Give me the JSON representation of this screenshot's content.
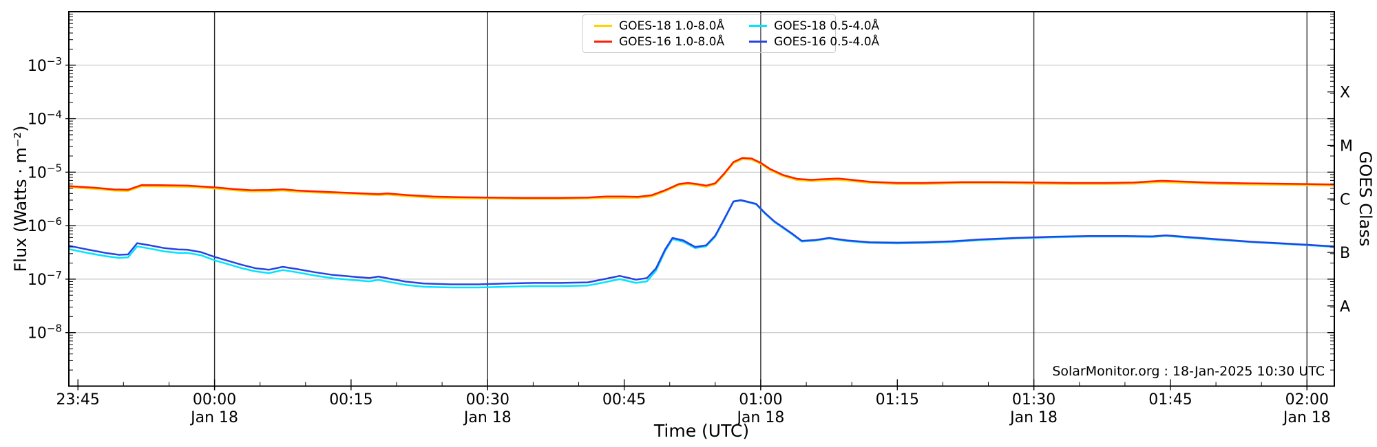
{
  "chart_data": {
    "type": "line",
    "title": "",
    "xlabel": "Time (UTC)",
    "ylabel": "Flux (Watts · m⁻²)",
    "ylabel_right": "GOES Class",
    "annotation": "SolarMonitor.org : 18-Jan-2025 10:30 UTC",
    "x_unit": "minutes relative to 00:00 on Jan 18",
    "x_range": [
      -16,
      123
    ],
    "y_scale": "log",
    "y_log_range": [
      -9,
      -2
    ],
    "grid": {
      "vertical_dark_gridline_times": [
        0,
        30,
        60,
        90,
        120
      ],
      "horizontal_decade_exponents": [
        -8,
        -7,
        -6,
        -5,
        -4,
        -3
      ]
    },
    "x_ticks": [
      {
        "t": -15,
        "label": "23:45"
      },
      {
        "t": 0,
        "label": "00:00",
        "sub": "Jan 18"
      },
      {
        "t": 15,
        "label": "00:15"
      },
      {
        "t": 30,
        "label": "00:30",
        "sub": "Jan 18"
      },
      {
        "t": 45,
        "label": "00:45"
      },
      {
        "t": 60,
        "label": "01:00",
        "sub": "Jan 18"
      },
      {
        "t": 75,
        "label": "01:15"
      },
      {
        "t": 90,
        "label": "01:30",
        "sub": "Jan 18"
      },
      {
        "t": 105,
        "label": "01:45"
      },
      {
        "t": 120,
        "label": "02:00",
        "sub": "Jan 18"
      }
    ],
    "x_minor_step_minutes": 5,
    "y_tick_exponents": [
      -8,
      -7,
      -6,
      -5,
      -4,
      -3
    ],
    "goes_classes": [
      {
        "label": "A",
        "exp": -7.5
      },
      {
        "label": "B",
        "exp": -6.5
      },
      {
        "label": "C",
        "exp": -5.5
      },
      {
        "label": "M",
        "exp": -4.5
      },
      {
        "label": "X",
        "exp": -3.5
      }
    ],
    "legend_position": "top-center",
    "series": [
      {
        "name": "GOES-18 1.0-8.0Å",
        "color": "#ffd300",
        "points": [
          [
            -16,
            5.2e-06
          ],
          [
            -13,
            4.85e-06
          ],
          [
            -11,
            4.5e-06
          ],
          [
            -9.5,
            4.45e-06
          ],
          [
            -8,
            5.45e-06
          ],
          [
            -6,
            5.4e-06
          ],
          [
            -3,
            5.3e-06
          ],
          [
            0,
            4.95e-06
          ],
          [
            2,
            4.6e-06
          ],
          [
            4,
            4.35e-06
          ],
          [
            6,
            4.4e-06
          ],
          [
            7.5,
            4.55e-06
          ],
          [
            9,
            4.3e-06
          ],
          [
            12,
            4.1e-06
          ],
          [
            15,
            3.9e-06
          ],
          [
            18,
            3.7e-06
          ],
          [
            19,
            3.8e-06
          ],
          [
            21,
            3.55e-06
          ],
          [
            24,
            3.3e-06
          ],
          [
            27,
            3.2e-06
          ],
          [
            30,
            3.2e-06
          ],
          [
            34,
            3.15e-06
          ],
          [
            38,
            3.15e-06
          ],
          [
            41,
            3.2e-06
          ],
          [
            43,
            3.3e-06
          ],
          [
            45,
            3.3e-06
          ],
          [
            46.5,
            3.3e-06
          ],
          [
            48,
            3.5e-06
          ],
          [
            49.5,
            4.4e-06
          ],
          [
            51,
            5.7e-06
          ],
          [
            52,
            6e-06
          ],
          [
            53,
            5.7e-06
          ],
          [
            54,
            5.3e-06
          ],
          [
            55,
            5.9e-06
          ],
          [
            56,
            9e-06
          ],
          [
            57,
            1.47e-05
          ],
          [
            58,
            1.76e-05
          ],
          [
            59,
            1.71e-05
          ],
          [
            60,
            1.43e-05
          ],
          [
            61,
            1.09e-05
          ],
          [
            62.5,
            8.4e-06
          ],
          [
            64,
            7.1e-06
          ],
          [
            65.5,
            6.8e-06
          ],
          [
            67,
            7e-06
          ],
          [
            68.5,
            7.2e-06
          ],
          [
            70,
            6.8e-06
          ],
          [
            72,
            6.3e-06
          ],
          [
            75,
            6e-06
          ],
          [
            78,
            6e-06
          ],
          [
            82,
            6.2e-06
          ],
          [
            86,
            6.2e-06
          ],
          [
            90,
            6.1e-06
          ],
          [
            94,
            6e-06
          ],
          [
            98,
            6e-06
          ],
          [
            101,
            6.1e-06
          ],
          [
            104,
            6.55e-06
          ],
          [
            106,
            6.35e-06
          ],
          [
            109,
            6.1e-06
          ],
          [
            113,
            5.9e-06
          ],
          [
            117,
            5.8e-06
          ],
          [
            120,
            5.7e-06
          ],
          [
            123,
            5.6e-06
          ]
        ]
      },
      {
        "name": "GOES-16 1.0-8.0Å",
        "color": "#ff1e00",
        "points": [
          [
            -16,
            5.5e-06
          ],
          [
            -13,
            5.1e-06
          ],
          [
            -11,
            4.75e-06
          ],
          [
            -9.5,
            4.7e-06
          ],
          [
            -8,
            5.75e-06
          ],
          [
            -6,
            5.7e-06
          ],
          [
            -3,
            5.6e-06
          ],
          [
            0,
            5.2e-06
          ],
          [
            2,
            4.85e-06
          ],
          [
            4,
            4.6e-06
          ],
          [
            6,
            4.65e-06
          ],
          [
            7.5,
            4.8e-06
          ],
          [
            9,
            4.55e-06
          ],
          [
            12,
            4.3e-06
          ],
          [
            15,
            4.1e-06
          ],
          [
            18,
            3.9e-06
          ],
          [
            19,
            4e-06
          ],
          [
            21,
            3.75e-06
          ],
          [
            24,
            3.5e-06
          ],
          [
            27,
            3.4e-06
          ],
          [
            30,
            3.35e-06
          ],
          [
            34,
            3.3e-06
          ],
          [
            38,
            3.3e-06
          ],
          [
            41,
            3.35e-06
          ],
          [
            43,
            3.5e-06
          ],
          [
            45,
            3.5e-06
          ],
          [
            46.5,
            3.45e-06
          ],
          [
            48,
            3.7e-06
          ],
          [
            49.5,
            4.6e-06
          ],
          [
            51,
            6e-06
          ],
          [
            52,
            6.3e-06
          ],
          [
            53,
            6e-06
          ],
          [
            54,
            5.6e-06
          ],
          [
            55,
            6.2e-06
          ],
          [
            56,
            9.5e-06
          ],
          [
            57,
            1.55e-05
          ],
          [
            58,
            1.85e-05
          ],
          [
            59,
            1.8e-05
          ],
          [
            60,
            1.5e-05
          ],
          [
            61,
            1.15e-05
          ],
          [
            62.5,
            8.8e-06
          ],
          [
            64,
            7.5e-06
          ],
          [
            65.5,
            7.2e-06
          ],
          [
            67,
            7.4e-06
          ],
          [
            68.5,
            7.6e-06
          ],
          [
            70,
            7.2e-06
          ],
          [
            72,
            6.6e-06
          ],
          [
            75,
            6.3e-06
          ],
          [
            78,
            6.3e-06
          ],
          [
            82,
            6.5e-06
          ],
          [
            86,
            6.5e-06
          ],
          [
            90,
            6.4e-06
          ],
          [
            94,
            6.3e-06
          ],
          [
            98,
            6.3e-06
          ],
          [
            101,
            6.4e-06
          ],
          [
            104,
            6.9e-06
          ],
          [
            106,
            6.7e-06
          ],
          [
            109,
            6.4e-06
          ],
          [
            113,
            6.2e-06
          ],
          [
            117,
            6.1e-06
          ],
          [
            120,
            6e-06
          ],
          [
            123,
            5.9e-06
          ]
        ]
      },
      {
        "name": "GOES-18 0.5-4.0Å",
        "color": "#00e4ff",
        "points": [
          [
            -16,
            3.65e-07
          ],
          [
            -14,
            3.1e-07
          ],
          [
            -12,
            2.7e-07
          ],
          [
            -10.5,
            2.5e-07
          ],
          [
            -9.5,
            2.55e-07
          ],
          [
            -8.5,
            4.1e-07
          ],
          [
            -7,
            3.7e-07
          ],
          [
            -5.5,
            3.3e-07
          ],
          [
            -4,
            3.1e-07
          ],
          [
            -3,
            3.1e-07
          ],
          [
            -1.5,
            2.8e-07
          ],
          [
            0,
            2.25e-07
          ],
          [
            1.5,
            1.9e-07
          ],
          [
            3,
            1.6e-07
          ],
          [
            4.5,
            1.4e-07
          ],
          [
            6,
            1.3e-07
          ],
          [
            7.5,
            1.48e-07
          ],
          [
            9,
            1.35e-07
          ],
          [
            11,
            1.17e-07
          ],
          [
            13,
            1.04e-07
          ],
          [
            15,
            9.7e-08
          ],
          [
            17,
            9.1e-08
          ],
          [
            18,
            9.7e-08
          ],
          [
            19.5,
            8.7e-08
          ],
          [
            21,
            7.8e-08
          ],
          [
            23,
            7.2e-08
          ],
          [
            26,
            7e-08
          ],
          [
            29,
            7e-08
          ],
          [
            32,
            7.2e-08
          ],
          [
            35,
            7.4e-08
          ],
          [
            38,
            7.4e-08
          ],
          [
            41,
            7.6e-08
          ],
          [
            42.8,
            8.7e-08
          ],
          [
            44.5,
            1e-07
          ],
          [
            46.3,
            8.5e-08
          ],
          [
            47.5,
            9.1e-08
          ],
          [
            48.5,
            1.45e-07
          ],
          [
            49.5,
            3.35e-07
          ],
          [
            50.3,
            5.6e-07
          ],
          [
            51.5,
            5e-07
          ],
          [
            52.8,
            3.8e-07
          ],
          [
            54,
            4.1e-07
          ],
          [
            55,
            6.2e-07
          ],
          [
            56,
            1.3e-06
          ],
          [
            57,
            2.8e-06
          ],
          [
            57.8,
            2.95e-06
          ],
          [
            58.6,
            2.75e-06
          ],
          [
            59.5,
            2.5e-06
          ],
          [
            60.5,
            1.65e-06
          ],
          [
            61.5,
            1.17e-06
          ],
          [
            62.5,
            8.9e-07
          ],
          [
            63.5,
            6.8e-07
          ],
          [
            64.5,
            5.05e-07
          ],
          [
            66,
            5.25e-07
          ],
          [
            67.5,
            5.75e-07
          ],
          [
            69.5,
            5.15e-07
          ],
          [
            72,
            4.75e-07
          ],
          [
            75,
            4.65e-07
          ],
          [
            78,
            4.75e-07
          ],
          [
            81,
            4.95e-07
          ],
          [
            84,
            5.35e-07
          ],
          [
            88,
            5.75e-07
          ],
          [
            92,
            6.05e-07
          ],
          [
            96,
            6.25e-07
          ],
          [
            100,
            6.25e-07
          ],
          [
            103,
            6.15e-07
          ],
          [
            104.5,
            6.45e-07
          ],
          [
            107,
            5.95e-07
          ],
          [
            110,
            5.45e-07
          ],
          [
            114,
            4.9e-07
          ],
          [
            118,
            4.5e-07
          ],
          [
            121,
            4.2e-07
          ],
          [
            123,
            4e-07
          ]
        ]
      },
      {
        "name": "GOES-16 0.5-4.0Å",
        "color": "#2743e3",
        "points": [
          [
            -16,
            4.2e-07
          ],
          [
            -14,
            3.6e-07
          ],
          [
            -12,
            3.1e-07
          ],
          [
            -10.5,
            2.85e-07
          ],
          [
            -9.5,
            2.9e-07
          ],
          [
            -8.5,
            4.7e-07
          ],
          [
            -7,
            4.25e-07
          ],
          [
            -5.5,
            3.8e-07
          ],
          [
            -4,
            3.6e-07
          ],
          [
            -3,
            3.55e-07
          ],
          [
            -1.5,
            3.2e-07
          ],
          [
            0,
            2.6e-07
          ],
          [
            1.5,
            2.2e-07
          ],
          [
            3,
            1.85e-07
          ],
          [
            4.5,
            1.6e-07
          ],
          [
            6,
            1.5e-07
          ],
          [
            7.5,
            1.7e-07
          ],
          [
            9,
            1.55e-07
          ],
          [
            11,
            1.35e-07
          ],
          [
            13,
            1.2e-07
          ],
          [
            15,
            1.12e-07
          ],
          [
            17,
            1.05e-07
          ],
          [
            18,
            1.12e-07
          ],
          [
            19.5,
            1e-07
          ],
          [
            21,
            9e-08
          ],
          [
            23,
            8.3e-08
          ],
          [
            26,
            8e-08
          ],
          [
            29,
            8e-08
          ],
          [
            32,
            8.3e-08
          ],
          [
            35,
            8.5e-08
          ],
          [
            38,
            8.5e-08
          ],
          [
            41,
            8.7e-08
          ],
          [
            42.8,
            1e-07
          ],
          [
            44.5,
            1.15e-07
          ],
          [
            46.3,
            9.8e-08
          ],
          [
            47.5,
            1.05e-07
          ],
          [
            48.5,
            1.6e-07
          ],
          [
            49.5,
            3.6e-07
          ],
          [
            50.3,
            5.9e-07
          ],
          [
            51.5,
            5.3e-07
          ],
          [
            52.8,
            4e-07
          ],
          [
            54,
            4.3e-07
          ],
          [
            55,
            6.5e-07
          ],
          [
            56,
            1.35e-06
          ],
          [
            57,
            2.85e-06
          ],
          [
            57.8,
            3e-06
          ],
          [
            58.6,
            2.8e-06
          ],
          [
            59.5,
            2.55e-06
          ],
          [
            60.5,
            1.7e-06
          ],
          [
            61.5,
            1.2e-06
          ],
          [
            62.5,
            9.2e-07
          ],
          [
            63.5,
            7e-07
          ],
          [
            64.5,
            5.2e-07
          ],
          [
            66,
            5.4e-07
          ],
          [
            67.5,
            5.9e-07
          ],
          [
            69.5,
            5.3e-07
          ],
          [
            72,
            4.9e-07
          ],
          [
            75,
            4.8e-07
          ],
          [
            78,
            4.9e-07
          ],
          [
            81,
            5.1e-07
          ],
          [
            84,
            5.5e-07
          ],
          [
            88,
            5.9e-07
          ],
          [
            92,
            6.2e-07
          ],
          [
            96,
            6.4e-07
          ],
          [
            100,
            6.4e-07
          ],
          [
            103,
            6.3e-07
          ],
          [
            104.5,
            6.6e-07
          ],
          [
            107,
            6.1e-07
          ],
          [
            110,
            5.6e-07
          ],
          [
            114,
            5e-07
          ],
          [
            118,
            4.6e-07
          ],
          [
            121,
            4.3e-07
          ],
          [
            123,
            4.1e-07
          ]
        ]
      }
    ]
  }
}
